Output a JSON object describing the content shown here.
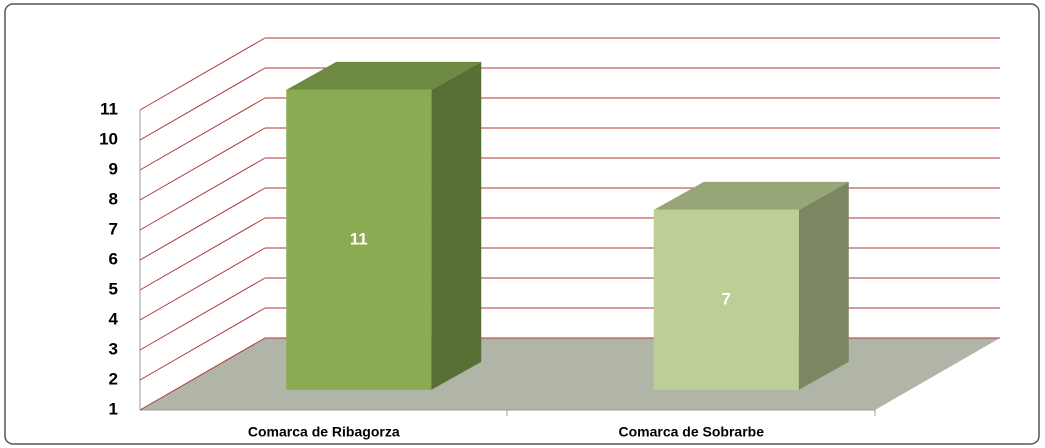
{
  "chart_data": {
    "type": "bar",
    "categories": [
      "Comarca de Ribagorza",
      "Comarca de Sobrarbe"
    ],
    "values": [
      11,
      7
    ],
    "colors": [
      "#8aab52",
      "#bccf96"
    ],
    "ylim": [
      1,
      11
    ],
    "yticks": [
      1,
      2,
      3,
      4,
      5,
      6,
      7,
      8,
      9,
      10,
      11
    ],
    "grid": true
  }
}
